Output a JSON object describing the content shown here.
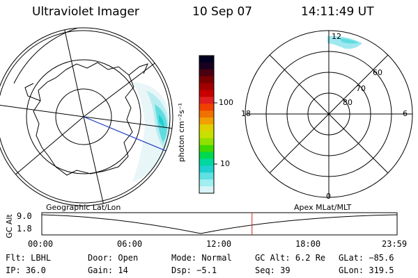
{
  "header": {
    "instrument": "Ultraviolet Imager",
    "date": "10 Sep 07",
    "time": "14:11:49 UT"
  },
  "colorbar": {
    "unit_label": "photon cm⁻²s⁻¹",
    "ticks": [
      "100",
      "10"
    ],
    "colors": [
      "#000020",
      "#1a0020",
      "#4a0010",
      "#7a0000",
      "#a00000",
      "#c80000",
      "#e02020",
      "#f04000",
      "#f07000",
      "#f0a000",
      "#e0d000",
      "#c8e000",
      "#90e000",
      "#40d800",
      "#00d850",
      "#00d8a0",
      "#20d0d0",
      "#60e0e0",
      "#a0eef0",
      "#d8f4f8"
    ]
  },
  "mlt_plot": {
    "mlt_labels": {
      "top": "12",
      "left": "18",
      "right": "6",
      "bottom": "0"
    },
    "lat_labels": [
      "60",
      "70",
      "80"
    ]
  },
  "timeline": {
    "title_left": "Geographic Lat/Lon",
    "title_right": "Apex MLat/MLT",
    "axis_label": "GC Alt",
    "y_top": "9.0",
    "y_bottom": "1.8",
    "x_ticks": [
      "00:00",
      "06:00",
      "12:00",
      "18:00",
      "23:59"
    ],
    "current_time_hours": 14.2
  },
  "status": {
    "row1": [
      {
        "key": "Flt:",
        "value": "LBHL"
      },
      {
        "key": "Door:",
        "value": "Open"
      },
      {
        "key": "Mode:",
        "value": "Normal"
      },
      {
        "key": "GC Alt:",
        "value": "6.2 Re"
      },
      {
        "key": "GLat:",
        "value": "−85.6"
      }
    ],
    "row2": [
      {
        "key": "IP:",
        "value": "36.0"
      },
      {
        "key": "Gain:",
        "value": "14"
      },
      {
        "key": "Dsp:",
        "value": "−5.1"
      },
      {
        "key": "Seq:",
        "value": "39"
      },
      {
        "key": "GLon:",
        "value": "319.5"
      }
    ]
  }
}
